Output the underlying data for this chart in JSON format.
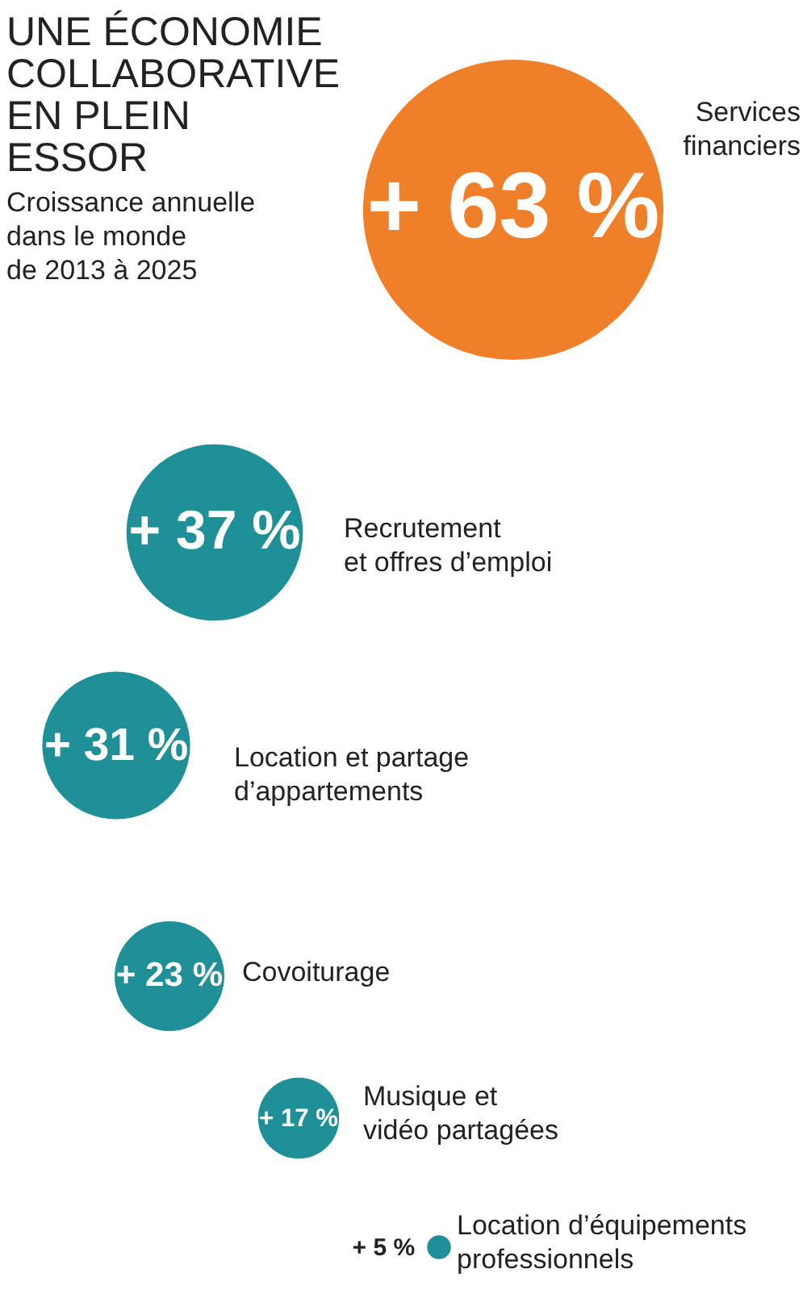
{
  "chart_data": {
    "type": "other",
    "title": "UNE ÉCONOMIE COLLABORATIVE EN PLEIN ESSOR",
    "subtitle": "Croissance annuelle dans le monde de 2013 à 2025",
    "categories": [
      "Services financiers",
      "Recrutement et offres d’emploi",
      "Location et partage d’appartements",
      "Covoiturage",
      "Musique et vidéo partagées",
      "Location d’équipements professionnels"
    ],
    "values": [
      63,
      37,
      31,
      23,
      17,
      5
    ],
    "value_labels": [
      "+ 63 %",
      "+ 37 %",
      "+ 31 %",
      "+ 23 %",
      "+ 17 %",
      "+ 5 %"
    ],
    "colors": [
      "#f07f2a",
      "#1f8f98",
      "#1f8f98",
      "#1f8f98",
      "#1f8f98",
      "#1f8f98"
    ]
  }
}
